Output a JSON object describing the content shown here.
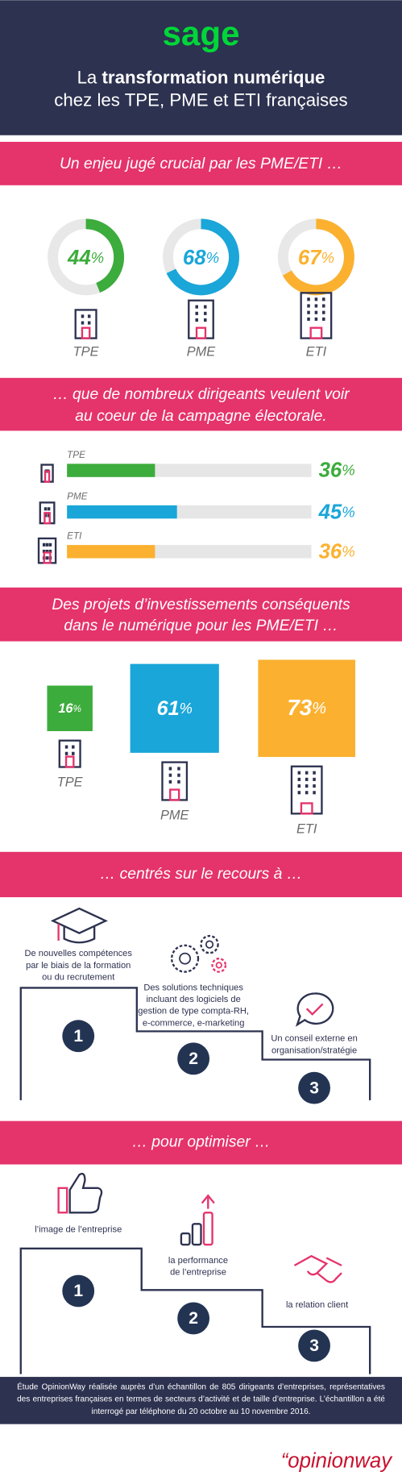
{
  "header": {
    "logo": "sage",
    "title_prefix": "La ",
    "title_bold": "transformation numérique",
    "title_line2": "chez les TPE, PME et ETI françaises"
  },
  "unit": "%",
  "crucial": {
    "title": "Un enjeu jugé crucial par les PME/ETI …",
    "items": [
      {
        "label": "TPE",
        "value": 44,
        "color": "#3cac3c"
      },
      {
        "label": "PME",
        "value": 68,
        "color": "#1aa6d9"
      },
      {
        "label": "ETI",
        "value": 67,
        "color": "#fbb12f"
      }
    ]
  },
  "campaign": {
    "title": [
      "… que de nombreux dirigeants veulent voir",
      "au coeur de la campagne électorale."
    ],
    "items": [
      {
        "label": "TPE",
        "value": 36,
        "color": "#3cac3c"
      },
      {
        "label": "PME",
        "value": 45,
        "color": "#1aa6d9"
      },
      {
        "label": "ETI",
        "value": 36,
        "color": "#fbb12f"
      }
    ]
  },
  "invest": {
    "title": [
      "Des projets d’investissements conséquents",
      "dans le numérique pour les PME/ETI …"
    ],
    "items": [
      {
        "label": "TPE",
        "value": 16,
        "color": "#3cac3c"
      },
      {
        "label": "PME",
        "value": 61,
        "color": "#1aa6d9"
      },
      {
        "label": "ETI",
        "value": 73,
        "color": "#fbb12f"
      }
    ]
  },
  "recours": {
    "title": "… centrés sur le recours à …",
    "steps": [
      {
        "number": "1",
        "text": [
          "De nouvelles compétences",
          "par le biais de la formation",
          "ou du recrutement"
        ]
      },
      {
        "number": "2",
        "text": [
          "Des solutions techniques",
          "incluant des logiciels de",
          "gestion de type compta-RH,",
          "e-commerce, e-marketing"
        ]
      },
      {
        "number": "3",
        "text": [
          "Un conseil externe en",
          "organisation/stratégie"
        ]
      }
    ]
  },
  "optimiser": {
    "title": "… pour optimiser …",
    "steps": [
      {
        "number": "1",
        "text": [
          "l’image de l’entreprise"
        ]
      },
      {
        "number": "2",
        "text": [
          "la performance",
          "de l’entreprise"
        ]
      },
      {
        "number": "3",
        "text": [
          "la relation client"
        ]
      }
    ]
  },
  "footer": {
    "note": "Étude OpinionWay réalisée auprès d’un échantillon de 805 dirigeants d’entreprises, représentatives des entreprises françaises en termes de secteurs d’activité et de taille d’entreprise. L’échantillon a été interrogé par téléphone du 20 octobre au 10 novembre 2016.",
    "brand": "“opinionway"
  }
}
